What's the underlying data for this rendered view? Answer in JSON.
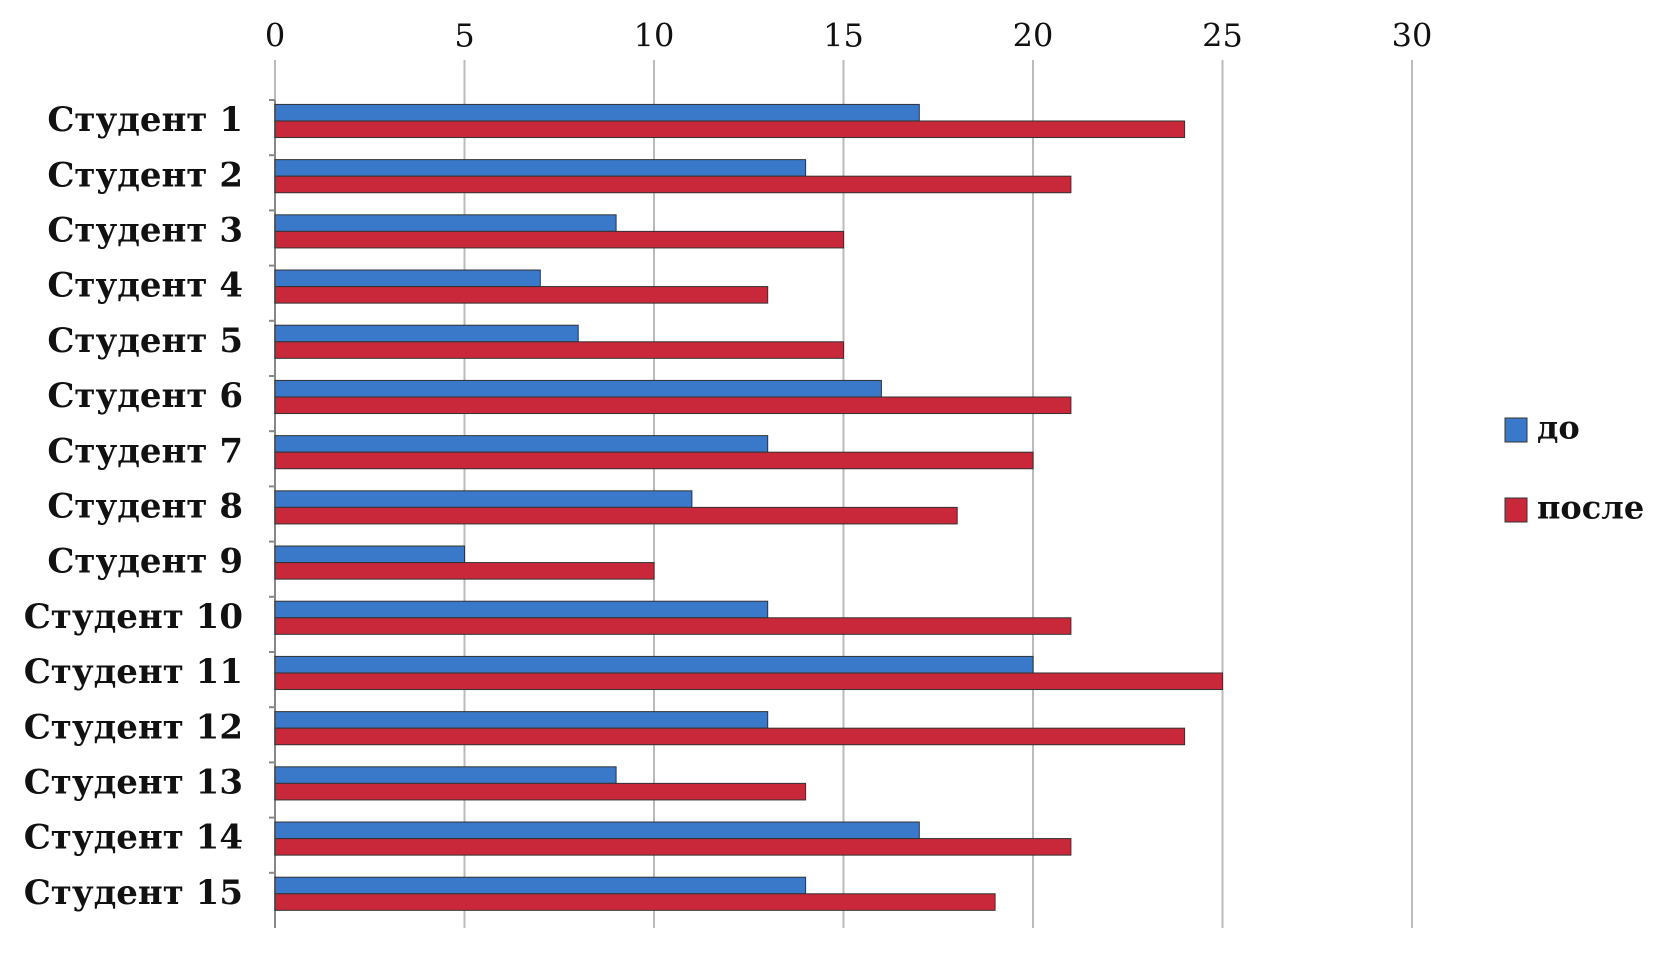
{
  "chart_data": {
    "type": "hbar",
    "categories": [
      "Студент 1",
      "Студент 2",
      "Студент 3",
      "Студент 4",
      "Студент 5",
      "Студент 6",
      "Студент 7",
      "Студент 8",
      "Студент 9",
      "Студент 10",
      "Студент 11",
      "Студент 12",
      "Студент 13",
      "Студент 14",
      "Студент 15"
    ],
    "series": [
      {
        "name": "до",
        "color": "#3a78c9",
        "values": [
          17,
          14,
          9,
          7,
          8,
          16,
          13,
          11,
          5,
          13,
          20,
          13,
          9,
          17,
          14
        ]
      },
      {
        "name": "после",
        "color": "#c8283a",
        "values": [
          24,
          21,
          15,
          13,
          15,
          21,
          20,
          18,
          10,
          21,
          25,
          24,
          14,
          21,
          19
        ]
      }
    ],
    "xlim": [
      0,
      30
    ],
    "xticks": [
      0,
      5,
      10,
      15,
      20,
      25,
      30
    ],
    "grid": true,
    "legend": "right"
  }
}
